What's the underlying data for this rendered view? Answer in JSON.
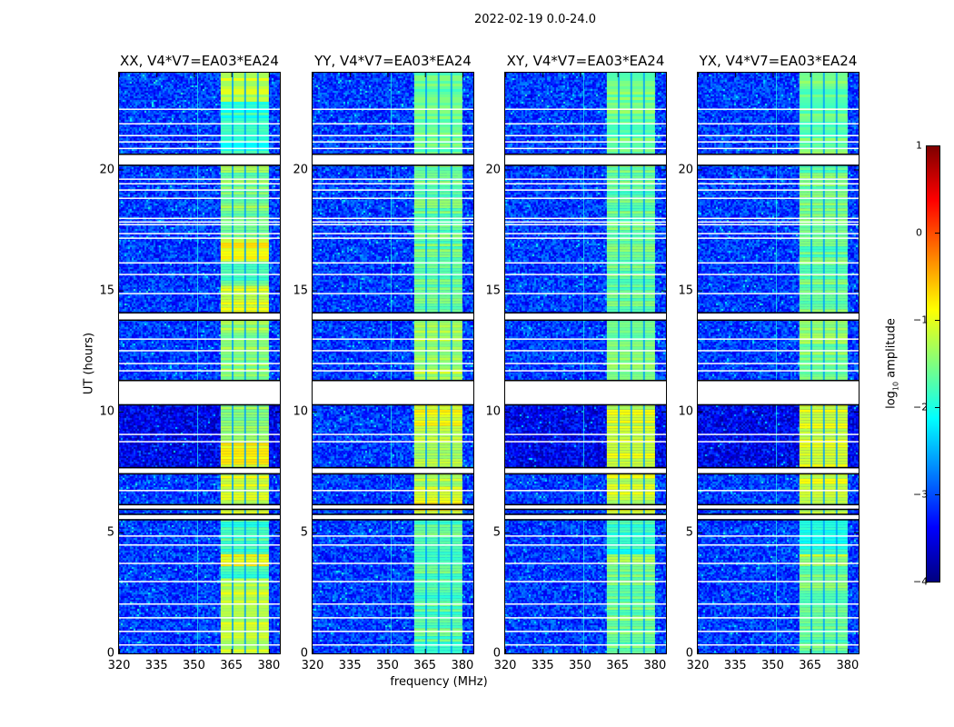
{
  "suptitle": "2022-02-19 0.0-24.0",
  "xlabel": "frequency (MHz)",
  "ylabel": "UT (hours)",
  "chart_data": {
    "type": "heatmap",
    "title": "2022-02-19 0.0-24.0",
    "xlabel": "frequency (MHz)",
    "ylabel": "UT (hours)",
    "xlim": [
      320,
      384.4
    ],
    "ylim": [
      0,
      24
    ],
    "xticks": [
      "320",
      "335",
      "350",
      "365",
      "380"
    ],
    "xtick_values": [
      320,
      335,
      350,
      365,
      380
    ],
    "yticks": [
      "0",
      "5",
      "10",
      "15",
      "20"
    ],
    "ytick_values": [
      0,
      5,
      10,
      15,
      20
    ],
    "background_level": -3.1,
    "band_mhz": [
      360.7,
      380.0
    ],
    "band_subchannel_gaps_mhz": [
      365.5,
      370.5,
      375.6
    ],
    "rfi_line_mhz": 351.3,
    "flagged_hours": [
      [
        20.2,
        20.6
      ],
      [
        13.8,
        14.05
      ],
      [
        10.3,
        11.25
      ],
      [
        7.45,
        7.65
      ],
      [
        5.98,
        6.12
      ],
      [
        5.55,
        5.72
      ]
    ],
    "flagged_lines_hours": [
      22.48,
      21.88,
      21.39,
      21.13,
      20.86,
      19.59,
      19.4,
      19.14,
      18.8,
      17.97,
      17.82,
      17.71,
      17.34,
      17.15,
      16.13,
      15.65,
      14.86,
      12.98,
      12.5,
      11.97,
      11.67,
      9.04,
      8.74,
      6.72,
      4.84,
      4.47,
      3.71,
      2.96,
      2.03,
      1.46,
      0.9,
      0.34
    ],
    "panels": [
      {
        "title": "XX, V4*V7=EA03*EA24",
        "band_segments": [
          {
            "from": 0,
            "to": 3.1,
            "level": -1.2
          },
          {
            "from": 3.1,
            "to": 3.6,
            "level": -1.9
          },
          {
            "from": 3.6,
            "to": 4.1,
            "level": -0.9
          },
          {
            "from": 4.1,
            "to": 5.55,
            "level": -1.8
          },
          {
            "from": 5.72,
            "to": 7.45,
            "level": -1.1
          },
          {
            "from": 7.65,
            "to": 8.7,
            "level": -0.9
          },
          {
            "from": 8.7,
            "to": 10.3,
            "level": -1.4
          },
          {
            "from": 11.25,
            "to": 13.8,
            "level": -1.4
          },
          {
            "from": 14.05,
            "to": 15.2,
            "level": -1.0
          },
          {
            "from": 15.2,
            "to": 16.2,
            "level": -1.7
          },
          {
            "from": 16.2,
            "to": 17.2,
            "level": -0.9
          },
          {
            "from": 17.2,
            "to": 20.2,
            "level": -1.5
          },
          {
            "from": 20.6,
            "to": 22.8,
            "level": -1.9
          },
          {
            "from": 22.8,
            "to": 24,
            "level": -1.2
          }
        ]
      },
      {
        "title": "YY, V4*V7=EA03*EA24",
        "band_segments": [
          {
            "from": 0,
            "to": 5.55,
            "level": -1.7
          },
          {
            "from": 5.72,
            "to": 6.9,
            "level": -0.9
          },
          {
            "from": 6.9,
            "to": 7.45,
            "level": -1.3
          },
          {
            "from": 7.65,
            "to": 9.4,
            "level": -1.2
          },
          {
            "from": 9.4,
            "to": 10.3,
            "level": -0.9
          },
          {
            "from": 11.25,
            "to": 13.8,
            "level": -1.3
          },
          {
            "from": 14.05,
            "to": 20.2,
            "level": -1.6
          },
          {
            "from": 20.6,
            "to": 24,
            "level": -1.6
          }
        ]
      },
      {
        "title": "XY, V4*V7=EA03*EA24",
        "band_segments": [
          {
            "from": 0,
            "to": 3.6,
            "level": -1.6
          },
          {
            "from": 3.6,
            "to": 4.1,
            "level": -1.3
          },
          {
            "from": 4.1,
            "to": 5.55,
            "level": -1.9
          },
          {
            "from": 5.72,
            "to": 7.45,
            "level": -1.1
          },
          {
            "from": 7.65,
            "to": 10.3,
            "level": -1.1
          },
          {
            "from": 11.25,
            "to": 13.8,
            "level": -1.5
          },
          {
            "from": 14.05,
            "to": 20.2,
            "level": -1.6
          },
          {
            "from": 20.6,
            "to": 24,
            "level": -1.6
          }
        ]
      },
      {
        "title": "YX, V4*V7=EA03*EA24",
        "band_segments": [
          {
            "from": 0,
            "to": 3.6,
            "level": -1.6
          },
          {
            "from": 3.6,
            "to": 4.1,
            "level": -1.3
          },
          {
            "from": 4.1,
            "to": 5.55,
            "level": -1.9
          },
          {
            "from": 5.72,
            "to": 7.45,
            "level": -1.1
          },
          {
            "from": 7.65,
            "to": 10.3,
            "level": -1.1
          },
          {
            "from": 11.25,
            "to": 13.8,
            "level": -1.5
          },
          {
            "from": 14.05,
            "to": 20.2,
            "level": -1.6
          },
          {
            "from": 20.6,
            "to": 24,
            "level": -1.6
          }
        ]
      }
    ],
    "colorbar": {
      "label": "log10 amplitude",
      "label_main": "log",
      "label_sub": "10",
      "label_rest": " amplitude",
      "range": [
        -4,
        1
      ],
      "ticks": [
        "1",
        "0",
        "−1",
        "−2",
        "−3",
        "−4"
      ],
      "tick_values": [
        1,
        0,
        -1,
        -2,
        -3,
        -4
      ],
      "colormap": "jet"
    }
  }
}
